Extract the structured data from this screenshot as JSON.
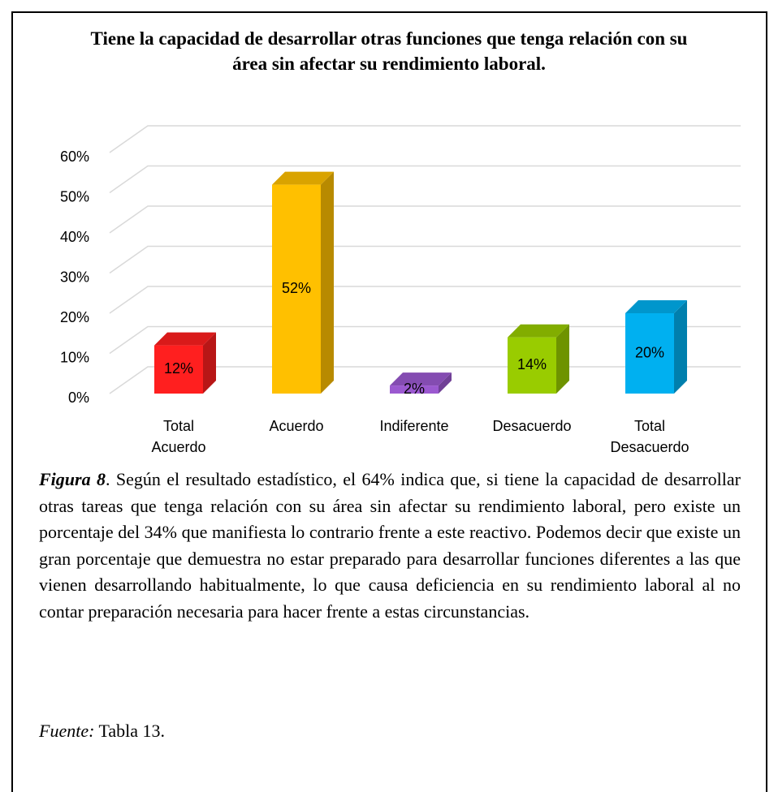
{
  "chart_data": {
    "type": "bar3d",
    "title": "Tiene la capacidad de desarrollar otras funciones que tenga relación con su área sin afectar su rendimiento laboral.",
    "categories": [
      "Total Acuerdo",
      "Acuerdo",
      "Indiferente",
      "Desacuerdo",
      "Total Desacuerdo"
    ],
    "values": [
      12,
      52,
      2,
      14,
      20
    ],
    "value_labels": [
      "12%",
      "52%",
      "2%",
      "14%",
      "20%"
    ],
    "colors": [
      "#ff1f1f",
      "#ffc000",
      "#9b59d0",
      "#99cc00",
      "#00b0f0"
    ],
    "ylim": [
      0,
      60
    ],
    "yticks": [
      {
        "value": 0,
        "label": "0%"
      },
      {
        "value": 10,
        "label": "10%"
      },
      {
        "value": 20,
        "label": "20%"
      },
      {
        "value": 30,
        "label": "30%"
      },
      {
        "value": 40,
        "label": "40%"
      },
      {
        "value": 50,
        "label": "50%"
      },
      {
        "value": 60,
        "label": "60%"
      }
    ],
    "grid": true
  },
  "caption": {
    "label": "Figura 8",
    "text": ". Según el resultado estadístico, el 64% indica que, si tiene la capacidad de desarrollar otras tareas que tenga relación con su área sin afectar su rendimiento laboral, pero existe un porcentaje del 34% que manifiesta lo contrario frente a este reactivo. Podemos decir que existe un gran porcentaje que demuestra no estar preparado para desarrollar funciones diferentes a las que vienen desarrollando habitualmente, lo que causa deficiencia en su rendimiento laboral al no contar preparación necesaria para hacer frente a estas circunstancias."
  },
  "source": {
    "label": "Fuente:",
    "text": "Tabla 13."
  }
}
